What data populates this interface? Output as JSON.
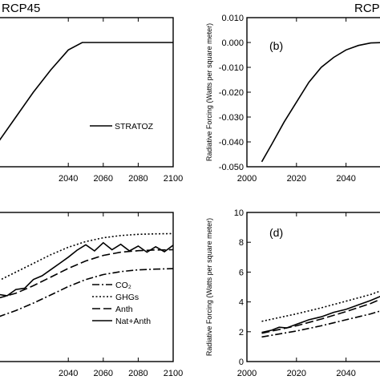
{
  "chart_data": [
    {
      "panel": "a",
      "type": "line",
      "scenario_label": "RCP45",
      "xlim": [
        2000,
        2100
      ],
      "x_ticks": [
        2040,
        2060,
        2080,
        2100
      ],
      "legend": [
        "STRATOZ"
      ],
      "series": [
        {
          "name": "STRATOZ",
          "dash": "",
          "x": [
            2000,
            2010,
            2020,
            2030,
            2040,
            2048,
            2060,
            2080,
            2100
          ],
          "y": [
            -0.04,
            -0.03,
            -0.02,
            -0.011,
            -0.003,
            0.0,
            0.0,
            0.0,
            0.0
          ]
        }
      ]
    },
    {
      "panel": "b",
      "type": "line",
      "scenario_label": "RCP",
      "ylabel": "Radiative Forcing (Watts per square meter)",
      "xlim": [
        2000,
        2055
      ],
      "ylim": [
        -0.05,
        0.01
      ],
      "x_ticks": [
        2000,
        2020,
        2040
      ],
      "y_ticks": [
        "0.010",
        "0.000",
        "-0.010",
        "-0.020",
        "-0.030",
        "-0.040",
        "-0.050"
      ],
      "label": "(b)",
      "series": [
        {
          "name": "STRATOZ",
          "dash": "",
          "x": [
            2006,
            2010,
            2015,
            2020,
            2025,
            2030,
            2035,
            2040,
            2045,
            2050,
            2055
          ],
          "y": [
            -0.048,
            -0.041,
            -0.032,
            -0.024,
            -0.016,
            -0.01,
            -0.006,
            -0.003,
            -0.0012,
            -0.0002,
            0.0
          ]
        }
      ]
    },
    {
      "panel": "c",
      "type": "line",
      "xlim": [
        2000,
        2100
      ],
      "x_ticks": [
        2040,
        2060,
        2080,
        2100
      ],
      "legend": [
        "CO₂",
        "GHGs",
        "Anth",
        "Nat+Anth"
      ],
      "series": [
        {
          "name": "GHGs",
          "dash": "2,2.5",
          "x": [
            2000,
            2010,
            2020,
            2030,
            2040,
            2050,
            2060,
            2070,
            2080,
            2090,
            2100
          ],
          "y": [
            3.25,
            3.6,
            3.95,
            4.3,
            4.6,
            4.83,
            4.98,
            5.07,
            5.12,
            5.14,
            5.15
          ]
        },
        {
          "name": "Anth",
          "dash": "10,4",
          "x": [
            2000,
            2010,
            2020,
            2030,
            2040,
            2050,
            2060,
            2070,
            2080,
            2090,
            2100
          ],
          "y": [
            2.55,
            2.75,
            3.05,
            3.4,
            3.75,
            4.05,
            4.27,
            4.4,
            4.46,
            4.49,
            4.5
          ]
        },
        {
          "name": "CO₂",
          "dash": "9,3,2,3",
          "x": [
            2000,
            2010,
            2020,
            2030,
            2040,
            2050,
            2060,
            2070,
            2080,
            2090,
            2100
          ],
          "y": [
            1.8,
            2.05,
            2.35,
            2.68,
            3.02,
            3.3,
            3.5,
            3.62,
            3.69,
            3.72,
            3.74
          ]
        },
        {
          "name": "Nat+Anth",
          "dash": "",
          "x": [
            2000,
            2005,
            2010,
            2015,
            2020,
            2025,
            2030,
            2035,
            2040,
            2045,
            2050,
            2055,
            2060,
            2065,
            2070,
            2075,
            2080,
            2085,
            2090,
            2095,
            2100
          ],
          "y": [
            2.7,
            2.65,
            2.9,
            2.95,
            3.3,
            3.45,
            3.7,
            3.95,
            4.2,
            4.48,
            4.7,
            4.45,
            4.78,
            4.5,
            4.72,
            4.45,
            4.65,
            4.4,
            4.62,
            4.42,
            4.68
          ]
        }
      ]
    },
    {
      "panel": "d",
      "type": "line",
      "ylabel": "Radiative Forcing (Watts per square meter)",
      "xlim": [
        2000,
        2055
      ],
      "ylim": [
        0,
        10
      ],
      "x_ticks": [
        2000,
        2020,
        2040
      ],
      "y_ticks": [
        0,
        2,
        4,
        6,
        8,
        10
      ],
      "label": "(d)",
      "series": [
        {
          "name": "GHGs",
          "dash": "2,2.5",
          "x": [
            2006,
            2020,
            2030,
            2040,
            2050,
            2055
          ],
          "y": [
            2.7,
            3.2,
            3.6,
            4.05,
            4.5,
            4.8
          ]
        },
        {
          "name": "Nat+Anth",
          "dash": "",
          "x": [
            2006,
            2010,
            2013,
            2016,
            2020,
            2025,
            2030,
            2035,
            2040,
            2045,
            2050,
            2055
          ],
          "y": [
            1.95,
            2.1,
            2.3,
            2.25,
            2.5,
            2.8,
            3.0,
            3.3,
            3.5,
            3.8,
            4.1,
            4.45
          ]
        },
        {
          "name": "Anth",
          "dash": "10,4",
          "x": [
            2006,
            2020,
            2030,
            2040,
            2050,
            2055
          ],
          "y": [
            1.9,
            2.4,
            2.85,
            3.35,
            3.9,
            4.25
          ]
        },
        {
          "name": "CO₂",
          "dash": "9,3,2,3",
          "x": [
            2006,
            2020,
            2030,
            2040,
            2050,
            2055
          ],
          "y": [
            1.65,
            2.05,
            2.4,
            2.8,
            3.2,
            3.45
          ]
        }
      ]
    }
  ]
}
